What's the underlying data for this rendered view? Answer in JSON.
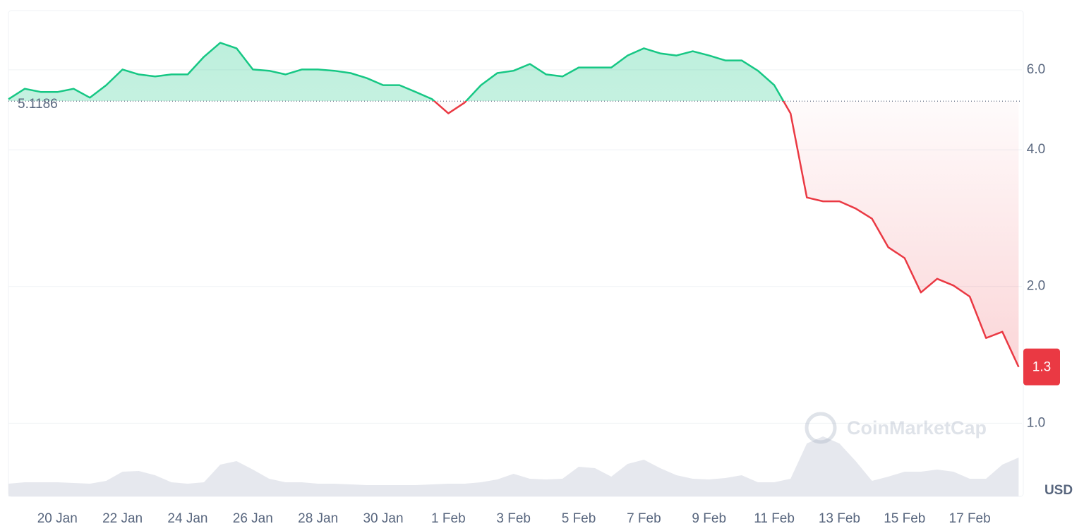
{
  "chart_data": {
    "type": "line",
    "log_scale": true,
    "grid": true,
    "x": [
      18.5,
      19,
      19.5,
      20,
      20.5,
      21,
      21.5,
      22,
      22.5,
      23,
      23.5,
      24,
      24.5,
      25,
      25.5,
      26,
      26.5,
      27,
      27.5,
      28,
      28.5,
      29,
      29.5,
      30,
      30.5,
      31,
      31.5,
      32,
      32.5,
      33,
      33.5,
      34,
      34.5,
      35,
      35.5,
      36,
      36.5,
      37,
      37.5,
      38,
      38.5,
      39,
      39.5,
      40,
      40.5,
      41,
      41.5,
      42,
      42.5,
      43,
      43.5,
      44,
      44.5,
      45,
      45.5,
      46,
      46.5,
      47,
      47.5,
      48,
      48.5,
      49,
      49.5
    ],
    "series": [
      {
        "name": "Price",
        "color": "#16c784",
        "color_below": "#ea3943",
        "values": [
          5.17,
          5.45,
          5.36,
          5.36,
          5.45,
          5.21,
          5.55,
          6.01,
          5.86,
          5.8,
          5.86,
          5.86,
          6.41,
          6.88,
          6.69,
          6.01,
          5.97,
          5.86,
          6.01,
          6.01,
          5.97,
          5.9,
          5.75,
          5.55,
          5.55,
          5.36,
          5.17,
          4.81,
          5.08,
          5.55,
          5.9,
          5.97,
          6.18,
          5.86,
          5.8,
          6.07,
          6.07,
          6.07,
          6.45,
          6.69,
          6.52,
          6.45,
          6.59,
          6.45,
          6.29,
          6.29,
          5.97,
          5.55,
          4.81,
          3.14,
          3.08,
          3.08,
          2.97,
          2.82,
          2.44,
          2.31,
          1.94,
          2.08,
          2.01,
          1.9,
          1.54,
          1.59,
          1.33
        ]
      },
      {
        "name": "Volume",
        "color": "#e6e8ee",
        "axis": "y2",
        "values": [
          18,
          20,
          20,
          20,
          19,
          18,
          22,
          35,
          36,
          30,
          20,
          18,
          20,
          45,
          50,
          38,
          25,
          20,
          20,
          18,
          18,
          17,
          16,
          16,
          16,
          16,
          17,
          18,
          18,
          20,
          24,
          32,
          25,
          24,
          25,
          42,
          40,
          28,
          46,
          52,
          40,
          30,
          25,
          24,
          26,
          30,
          20,
          20,
          25,
          75,
          85,
          75,
          50,
          22,
          28,
          35,
          35,
          38,
          35,
          25,
          25,
          45,
          55
        ]
      }
    ],
    "xlim": [
      18.5,
      49.6
    ],
    "xticks": [
      {
        "value": 20,
        "label": "20 Jan"
      },
      {
        "value": 22,
        "label": "22 Jan"
      },
      {
        "value": 24,
        "label": "24 Jan"
      },
      {
        "value": 26,
        "label": "26 Jan"
      },
      {
        "value": 28,
        "label": "28 Jan"
      },
      {
        "value": 30,
        "label": "30 Jan"
      },
      {
        "value": 32,
        "label": "1 Feb"
      },
      {
        "value": 34,
        "label": "3 Feb"
      },
      {
        "value": 36,
        "label": "5 Feb"
      },
      {
        "value": 38,
        "label": "7 Feb"
      },
      {
        "value": 40,
        "label": "9 Feb"
      },
      {
        "value": 42,
        "label": "11 Feb"
      },
      {
        "value": 44,
        "label": "13 Feb"
      },
      {
        "value": 46,
        "label": "15 Feb"
      },
      {
        "value": 48,
        "label": "17 Feb"
      }
    ],
    "ylim": [
      0.69,
      8.1
    ],
    "yticks": [
      {
        "value": 1,
        "label": "1.0"
      },
      {
        "value": 2,
        "label": "2.0"
      },
      {
        "value": 4,
        "label": "4.0"
      },
      {
        "value": 6,
        "label": "6.0"
      }
    ],
    "y2lim": [
      0,
      100
    ],
    "reference": 5.1186,
    "price_label": "1.3",
    "y_unit": "USD",
    "watermark": "CoinMarketCap"
  }
}
